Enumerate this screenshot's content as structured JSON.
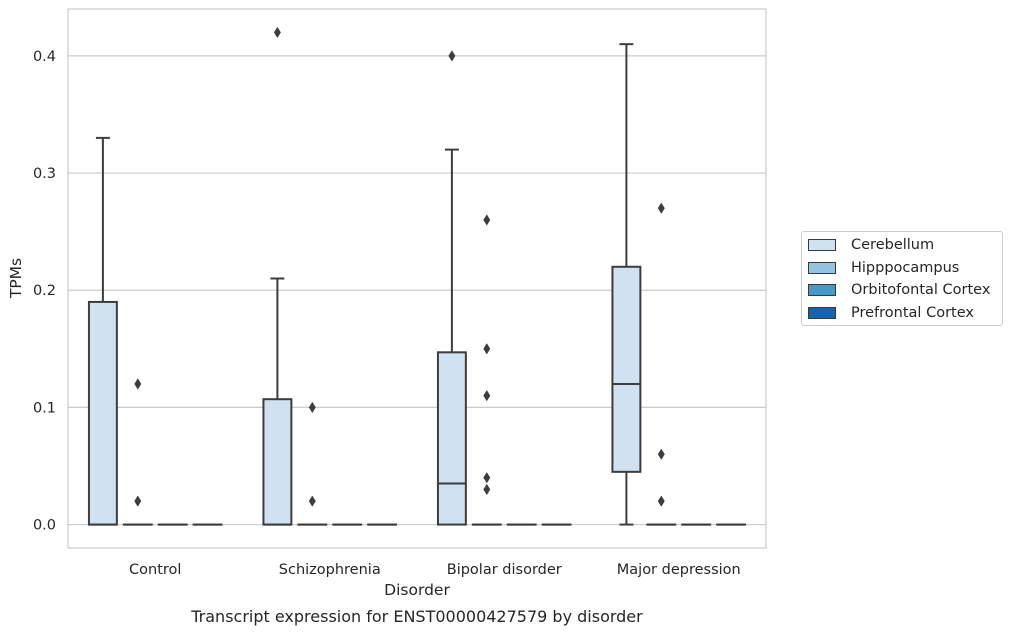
{
  "chart_data": {
    "type": "box",
    "title": "Transcript expression for ENST00000427579 by disorder",
    "xlabel": "Disorder",
    "ylabel": "TPMs",
    "categories": [
      "Control",
      "Schizophrenia",
      "Bipolar disorder",
      "Major depression"
    ],
    "ylim": [
      -0.02,
      0.44
    ],
    "yticks": [
      0.0,
      0.1,
      0.2,
      0.3,
      0.4
    ],
    "ytick_labels": [
      "0.0",
      "0.1",
      "0.2",
      "0.3",
      "0.4"
    ],
    "grid": true,
    "legend_position": "right",
    "series": [
      {
        "name": "Cerebellum",
        "color": "#d0e1f2",
        "boxes": [
          {
            "q1": 0.0,
            "median": 0.0,
            "q3": 0.19,
            "whisker_low": 0.0,
            "whisker_high": 0.33,
            "outliers": []
          },
          {
            "q1": 0.0,
            "median": 0.0,
            "q3": 0.107,
            "whisker_low": 0.0,
            "whisker_high": 0.21,
            "outliers": [
              0.42
            ]
          },
          {
            "q1": 0.0,
            "median": 0.035,
            "q3": 0.147,
            "whisker_low": 0.0,
            "whisker_high": 0.32,
            "outliers": [
              0.4
            ]
          },
          {
            "q1": 0.045,
            "median": 0.12,
            "q3": 0.22,
            "whisker_low": 0.0,
            "whisker_high": 0.41,
            "outliers": []
          }
        ]
      },
      {
        "name": "Hipppocampus",
        "color": "#94c4df",
        "boxes": [
          {
            "q1": 0.0,
            "median": 0.0,
            "q3": 0.0,
            "whisker_low": 0.0,
            "whisker_high": 0.0,
            "outliers": [
              0.12,
              0.02
            ]
          },
          {
            "q1": 0.0,
            "median": 0.0,
            "q3": 0.0,
            "whisker_low": 0.0,
            "whisker_high": 0.0,
            "outliers": [
              0.1,
              0.02
            ]
          },
          {
            "q1": 0.0,
            "median": 0.0,
            "q3": 0.0,
            "whisker_low": 0.0,
            "whisker_high": 0.0,
            "outliers": [
              0.26,
              0.15,
              0.11,
              0.04,
              0.03
            ]
          },
          {
            "q1": 0.0,
            "median": 0.0,
            "q3": 0.0,
            "whisker_low": 0.0,
            "whisker_high": 0.0,
            "outliers": [
              0.27,
              0.06,
              0.02
            ]
          }
        ]
      },
      {
        "name": "Orbitofontal Cortex",
        "color": "#4a98c9",
        "boxes": [
          {
            "q1": 0.0,
            "median": 0.0,
            "q3": 0.0,
            "whisker_low": 0.0,
            "whisker_high": 0.0,
            "outliers": []
          },
          {
            "q1": 0.0,
            "median": 0.0,
            "q3": 0.0,
            "whisker_low": 0.0,
            "whisker_high": 0.0,
            "outliers": []
          },
          {
            "q1": 0.0,
            "median": 0.0,
            "q3": 0.0,
            "whisker_low": 0.0,
            "whisker_high": 0.0,
            "outliers": []
          },
          {
            "q1": 0.0,
            "median": 0.0,
            "q3": 0.0,
            "whisker_low": 0.0,
            "whisker_high": 0.0,
            "outliers": []
          }
        ]
      },
      {
        "name": "Prefrontal Cortex",
        "color": "#1764ab",
        "boxes": [
          {
            "q1": 0.0,
            "median": 0.0,
            "q3": 0.0,
            "whisker_low": 0.0,
            "whisker_high": 0.0,
            "outliers": []
          },
          {
            "q1": 0.0,
            "median": 0.0,
            "q3": 0.0,
            "whisker_low": 0.0,
            "whisker_high": 0.0,
            "outliers": []
          },
          {
            "q1": 0.0,
            "median": 0.0,
            "q3": 0.0,
            "whisker_low": 0.0,
            "whisker_high": 0.0,
            "outliers": []
          },
          {
            "q1": 0.0,
            "median": 0.0,
            "q3": 0.0,
            "whisker_low": 0.0,
            "whisker_high": 0.0,
            "outliers": []
          }
        ]
      }
    ]
  }
}
